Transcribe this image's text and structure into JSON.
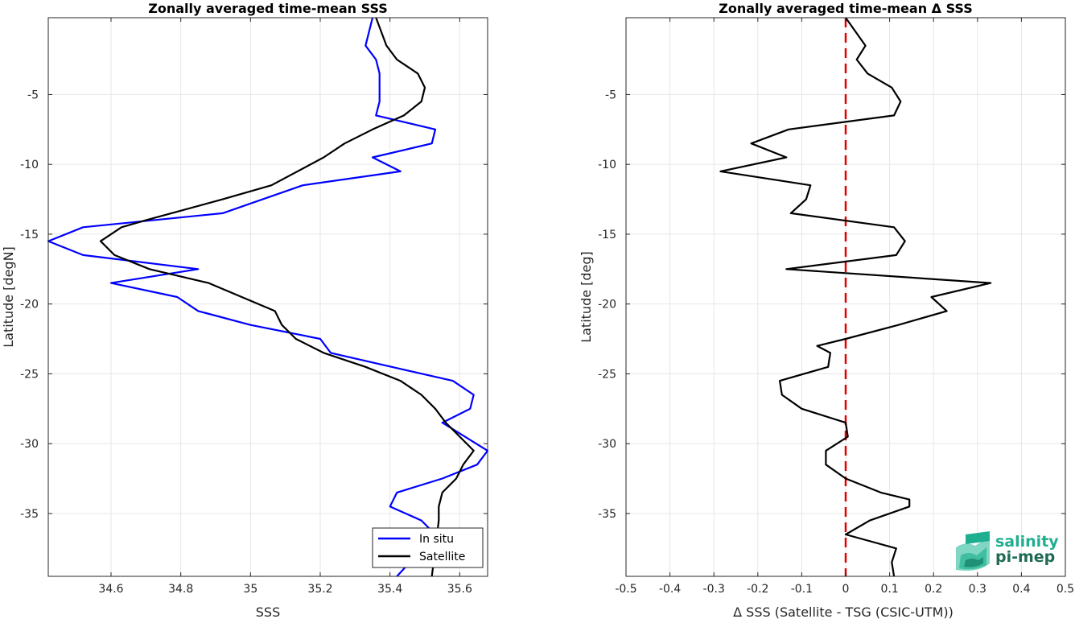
{
  "chart_data": [
    {
      "type": "line",
      "title": "Zonally averaged time-mean SSS",
      "xlabel": "SSS",
      "ylabel": "Latitude [degN]",
      "xlim": [
        34.42,
        35.68
      ],
      "ylim": [
        -39.5,
        0.5
      ],
      "xticks": [
        "34.6",
        "34.8",
        "35",
        "35.2",
        "35.4",
        "35.6"
      ],
      "xtick_values": [
        34.6,
        34.8,
        35.0,
        35.2,
        35.4,
        35.6
      ],
      "yticks": [
        "-5",
        "-10",
        "-15",
        "-20",
        "-25",
        "-30",
        "-35"
      ],
      "ytick_values": [
        -5,
        -10,
        -15,
        -20,
        -25,
        -30,
        -35
      ],
      "grid": true,
      "legend_position": "bottom-right",
      "series": [
        {
          "name": "In situ",
          "color": "#0000ff",
          "points": [
            [
              35.35,
              0.5
            ],
            [
              35.33,
              -1.5
            ],
            [
              35.36,
              -2.5
            ],
            [
              35.37,
              -3.5
            ],
            [
              35.37,
              -4.5
            ],
            [
              35.37,
              -5.5
            ],
            [
              35.36,
              -6.5
            ],
            [
              35.53,
              -7.5
            ],
            [
              35.52,
              -8.5
            ],
            [
              35.35,
              -9.5
            ],
            [
              35.43,
              -10.5
            ],
            [
              35.15,
              -11.5
            ],
            [
              34.92,
              -13.5
            ],
            [
              34.52,
              -14.5
            ],
            [
              34.42,
              -15.5
            ],
            [
              34.52,
              -16.5
            ],
            [
              34.85,
              -17.5
            ],
            [
              34.6,
              -18.5
            ],
            [
              34.79,
              -19.5
            ],
            [
              34.85,
              -20.5
            ],
            [
              35.0,
              -21.5
            ],
            [
              35.2,
              -22.5
            ],
            [
              35.23,
              -23.5
            ],
            [
              35.58,
              -25.5
            ],
            [
              35.64,
              -26.5
            ],
            [
              35.63,
              -27.5
            ],
            [
              35.55,
              -28.5
            ],
            [
              35.68,
              -30.5
            ],
            [
              35.65,
              -31.5
            ],
            [
              35.55,
              -32.5
            ],
            [
              35.42,
              -33.5
            ],
            [
              35.4,
              -34.5
            ],
            [
              35.49,
              -35.5
            ],
            [
              35.53,
              -36.5
            ],
            [
              35.42,
              -39.5
            ]
          ]
        },
        {
          "name": "Satellite",
          "color": "#000000",
          "points": [
            [
              35.36,
              0.5
            ],
            [
              35.39,
              -1.5
            ],
            [
              35.42,
              -2.5
            ],
            [
              35.48,
              -3.5
            ],
            [
              35.5,
              -4.5
            ],
            [
              35.49,
              -5.5
            ],
            [
              35.44,
              -6.5
            ],
            [
              35.35,
              -7.5
            ],
            [
              35.27,
              -8.5
            ],
            [
              35.21,
              -9.5
            ],
            [
              35.06,
              -11.5
            ],
            [
              34.92,
              -12.5
            ],
            [
              34.7,
              -14
            ],
            [
              34.63,
              -14.5
            ],
            [
              34.57,
              -15.5
            ],
            [
              34.61,
              -16.5
            ],
            [
              34.71,
              -17.5
            ],
            [
              34.88,
              -18.5
            ],
            [
              35.07,
              -20.5
            ],
            [
              35.09,
              -21.5
            ],
            [
              35.13,
              -22.5
            ],
            [
              35.21,
              -23.5
            ],
            [
              35.33,
              -24.5
            ],
            [
              35.43,
              -25.5
            ],
            [
              35.49,
              -26.5
            ],
            [
              35.53,
              -27.5
            ],
            [
              35.56,
              -28.5
            ],
            [
              35.64,
              -30.5
            ],
            [
              35.61,
              -31.5
            ],
            [
              35.59,
              -32.5
            ],
            [
              35.55,
              -33.5
            ],
            [
              35.54,
              -34.5
            ],
            [
              35.54,
              -35.5
            ],
            [
              35.52,
              -39.5
            ]
          ]
        }
      ]
    },
    {
      "type": "line",
      "title": "Zonally averaged time-mean Δ SSS",
      "xlabel": "Δ SSS (Satellite - TSG (CSIC-UTM))",
      "ylabel": "Latitude [deg]",
      "xlim": [
        -0.5,
        0.5
      ],
      "ylim": [
        -39.5,
        0.5
      ],
      "xticks": [
        "-0.5",
        "-0.4",
        "-0.3",
        "-0.2",
        "-0.1",
        "0",
        "0.1",
        "0.2",
        "0.3",
        "0.4",
        "0.5"
      ],
      "xtick_values": [
        -0.5,
        -0.4,
        -0.3,
        -0.2,
        -0.1,
        0,
        0.1,
        0.2,
        0.3,
        0.4,
        0.5
      ],
      "yticks": [
        "-5",
        "-10",
        "-15",
        "-20",
        "-25",
        "-30",
        "-35"
      ],
      "ytick_values": [
        -5,
        -10,
        -15,
        -20,
        -25,
        -30,
        -35
      ],
      "grid": true,
      "reference_line": {
        "x": 0,
        "color": "#e00000",
        "style": "dashed"
      },
      "series": [
        {
          "color": "#000000",
          "points": [
            [
              0.0,
              0.5
            ],
            [
              0.045,
              -1.5
            ],
            [
              0.025,
              -2.5
            ],
            [
              0.05,
              -3.5
            ],
            [
              0.105,
              -4.5
            ],
            [
              0.125,
              -5.5
            ],
            [
              0.11,
              -6.5
            ],
            [
              -0.13,
              -7.5
            ],
            [
              -0.215,
              -8.5
            ],
            [
              -0.135,
              -9.5
            ],
            [
              -0.285,
              -10.5
            ],
            [
              -0.08,
              -11.5
            ],
            [
              -0.09,
              -12.5
            ],
            [
              -0.125,
              -13.5
            ],
            [
              0.11,
              -14.5
            ],
            [
              0.135,
              -15.5
            ],
            [
              0.115,
              -16.5
            ],
            [
              -0.135,
              -17.5
            ],
            [
              0.33,
              -18.5
            ],
            [
              0.195,
              -19.5
            ],
            [
              0.23,
              -20.5
            ],
            [
              0.12,
              -21.5
            ],
            [
              0.0,
              -22.5
            ],
            [
              -0.065,
              -23
            ],
            [
              -0.035,
              -23.5
            ],
            [
              -0.04,
              -24.5
            ],
            [
              -0.15,
              -25.5
            ],
            [
              -0.145,
              -26.5
            ],
            [
              -0.1,
              -27.5
            ],
            [
              0.0,
              -28.5
            ],
            [
              0.005,
              -29.5
            ],
            [
              -0.045,
              -30.5
            ],
            [
              -0.045,
              -31.5
            ],
            [
              0.0,
              -32.5
            ],
            [
              0.08,
              -33.5
            ],
            [
              0.145,
              -34
            ],
            [
              0.145,
              -34.5
            ],
            [
              0.055,
              -35.5
            ],
            [
              0.0,
              -36.5
            ],
            [
              0.115,
              -37.5
            ],
            [
              0.105,
              -38.5
            ],
            [
              0.11,
              -39.5
            ]
          ]
        }
      ]
    }
  ],
  "logo": {
    "line1": "salinity",
    "line2": "pi-mep",
    "color1": "#1fae8f",
    "color2": "#1f6a54"
  }
}
